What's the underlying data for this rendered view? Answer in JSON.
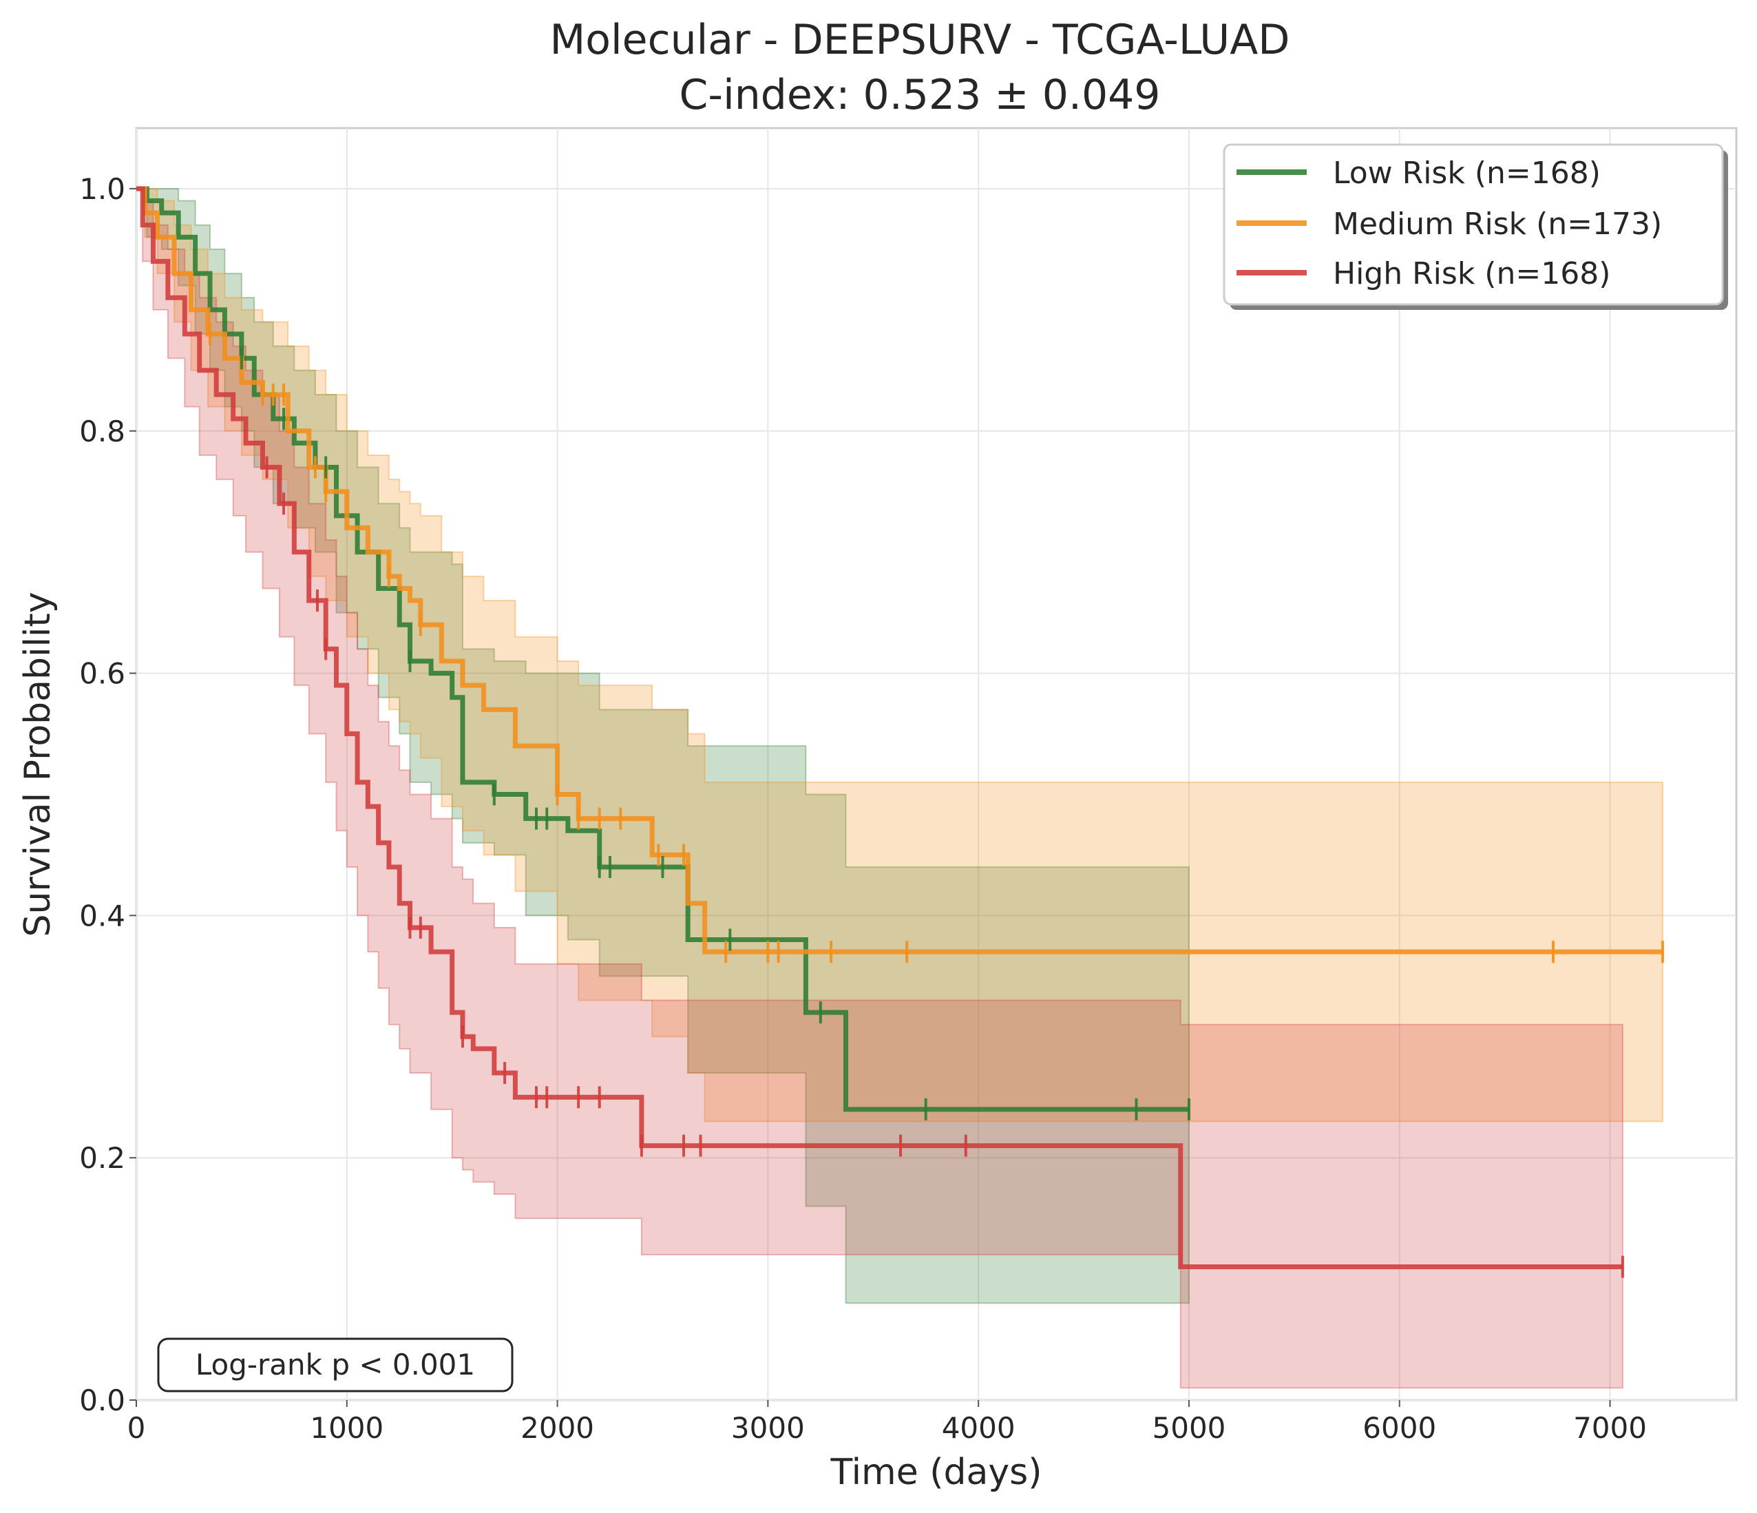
{
  "chart_data": {
    "type": "line",
    "title": "Molecular - DEEPSURV - TCGA-LUAD",
    "subtitle": "C-index: 0.523 ± 0.049",
    "xlabel": "Time (days)",
    "ylabel": "Survival Probability",
    "xlim": [
      0,
      7600
    ],
    "ylim": [
      0,
      1.05
    ],
    "xticks": [
      0,
      1000,
      2000,
      3000,
      4000,
      5000,
      6000,
      7000
    ],
    "yticks": [
      0.0,
      0.2,
      0.4,
      0.6,
      0.8,
      1.0
    ],
    "xtick_labels": [
      "0",
      "1000",
      "2000",
      "3000",
      "4000",
      "5000",
      "6000",
      "7000"
    ],
    "ytick_labels": [
      "0.0",
      "0.2",
      "0.4",
      "0.6",
      "0.8",
      "1.0"
    ],
    "grid": true,
    "legend_position": "top-right",
    "annotation": "Log-rank p < 0.001",
    "series": [
      {
        "name": "Low Risk (n=168)",
        "color": "#2e7d32",
        "x": [
          0,
          50,
          120,
          200,
          280,
          350,
          420,
          500,
          560,
          650,
          750,
          850,
          950,
          1050,
          1150,
          1250,
          1300,
          1400,
          1500,
          1550,
          1700,
          1850,
          2050,
          2200,
          2400,
          2620,
          2750,
          3000,
          3180,
          3250,
          3370,
          4000,
          4750,
          5000
        ],
        "y": [
          1.0,
          0.99,
          0.98,
          0.96,
          0.93,
          0.9,
          0.88,
          0.86,
          0.83,
          0.81,
          0.79,
          0.77,
          0.73,
          0.7,
          0.67,
          0.64,
          0.61,
          0.6,
          0.58,
          0.51,
          0.5,
          0.48,
          0.47,
          0.44,
          0.44,
          0.38,
          0.38,
          0.38,
          0.32,
          0.32,
          0.24,
          0.24,
          0.24,
          0.24
        ],
        "ci_lower": [
          1.0,
          0.96,
          0.95,
          0.92,
          0.88,
          0.85,
          0.82,
          0.8,
          0.77,
          0.74,
          0.72,
          0.7,
          0.65,
          0.62,
          0.58,
          0.55,
          0.51,
          0.5,
          0.48,
          0.46,
          0.45,
          0.4,
          0.38,
          0.35,
          0.35,
          0.27,
          0.27,
          0.27,
          0.16,
          0.16,
          0.08,
          0.08,
          0.08,
          0.08
        ],
        "ci_upper": [
          1.0,
          1.0,
          1.0,
          0.99,
          0.97,
          0.95,
          0.93,
          0.91,
          0.89,
          0.87,
          0.85,
          0.83,
          0.8,
          0.77,
          0.74,
          0.72,
          0.7,
          0.7,
          0.69,
          0.62,
          0.61,
          0.6,
          0.6,
          0.57,
          0.57,
          0.54,
          0.54,
          0.54,
          0.5,
          0.5,
          0.44,
          0.44,
          0.44,
          0.44
        ],
        "censor_x": [
          500,
          700,
          900,
          1300,
          1700,
          1900,
          1950,
          2200,
          2250,
          2500,
          2820,
          3250,
          3750,
          4750,
          5000
        ]
      },
      {
        "name": "Medium Risk (n=173)",
        "color": "#f28e1c",
        "x": [
          0,
          40,
          100,
          180,
          260,
          340,
          420,
          500,
          600,
          720,
          820,
          900,
          1000,
          1100,
          1200,
          1250,
          1300,
          1350,
          1450,
          1550,
          1650,
          1800,
          2000,
          2100,
          2300,
          2450,
          2550,
          2620,
          2700,
          3300,
          3660,
          6730,
          7250
        ],
        "y": [
          1.0,
          0.98,
          0.96,
          0.93,
          0.9,
          0.88,
          0.86,
          0.84,
          0.83,
          0.8,
          0.77,
          0.75,
          0.72,
          0.7,
          0.68,
          0.67,
          0.66,
          0.64,
          0.61,
          0.59,
          0.57,
          0.54,
          0.5,
          0.48,
          0.48,
          0.45,
          0.45,
          0.41,
          0.37,
          0.37,
          0.37,
          0.37,
          0.37
        ],
        "ci_lower": [
          1.0,
          0.96,
          0.93,
          0.89,
          0.85,
          0.82,
          0.8,
          0.78,
          0.76,
          0.72,
          0.68,
          0.66,
          0.63,
          0.6,
          0.57,
          0.56,
          0.55,
          0.53,
          0.49,
          0.47,
          0.45,
          0.42,
          0.36,
          0.33,
          0.33,
          0.3,
          0.3,
          0.27,
          0.23,
          0.23,
          0.23,
          0.23,
          0.23
        ],
        "ci_upper": [
          1.0,
          1.0,
          0.99,
          0.97,
          0.95,
          0.93,
          0.91,
          0.9,
          0.89,
          0.87,
          0.85,
          0.83,
          0.8,
          0.78,
          0.76,
          0.75,
          0.74,
          0.73,
          0.7,
          0.68,
          0.66,
          0.63,
          0.61,
          0.59,
          0.59,
          0.57,
          0.57,
          0.55,
          0.51,
          0.51,
          0.51,
          0.51,
          0.51
        ],
        "censor_x": [
          350,
          600,
          650,
          700,
          850,
          900,
          1200,
          1350,
          2000,
          2100,
          2200,
          2300,
          2480,
          2600,
          2800,
          3000,
          3050,
          3300,
          3660,
          6730,
          7250
        ]
      },
      {
        "name": "High Risk (n=168)",
        "color": "#d03b3b",
        "x": [
          0,
          30,
          80,
          150,
          230,
          300,
          380,
          460,
          520,
          600,
          680,
          750,
          820,
          900,
          950,
          1000,
          1050,
          1100,
          1150,
          1200,
          1250,
          1300,
          1400,
          1500,
          1550,
          1600,
          1700,
          1800,
          2000,
          2200,
          2400,
          2600,
          2700,
          3630,
          3940,
          4960,
          7060
        ],
        "y": [
          1.0,
          0.97,
          0.94,
          0.91,
          0.88,
          0.85,
          0.83,
          0.81,
          0.79,
          0.77,
          0.74,
          0.7,
          0.66,
          0.62,
          0.59,
          0.55,
          0.51,
          0.49,
          0.46,
          0.44,
          0.41,
          0.39,
          0.37,
          0.32,
          0.3,
          0.29,
          0.27,
          0.25,
          0.25,
          0.25,
          0.21,
          0.21,
          0.21,
          0.21,
          0.21,
          0.11,
          0.11
        ],
        "ci_lower": [
          1.0,
          0.94,
          0.9,
          0.86,
          0.82,
          0.78,
          0.76,
          0.73,
          0.7,
          0.67,
          0.63,
          0.59,
          0.55,
          0.51,
          0.47,
          0.44,
          0.4,
          0.37,
          0.34,
          0.31,
          0.29,
          0.27,
          0.24,
          0.2,
          0.19,
          0.18,
          0.17,
          0.15,
          0.15,
          0.15,
          0.12,
          0.12,
          0.12,
          0.12,
          0.12,
          0.01,
          0.01
        ],
        "ci_upper": [
          1.0,
          0.99,
          0.97,
          0.95,
          0.93,
          0.91,
          0.89,
          0.87,
          0.85,
          0.83,
          0.8,
          0.77,
          0.74,
          0.71,
          0.68,
          0.65,
          0.62,
          0.59,
          0.56,
          0.54,
          0.52,
          0.5,
          0.48,
          0.44,
          0.43,
          0.41,
          0.39,
          0.36,
          0.36,
          0.36,
          0.33,
          0.33,
          0.33,
          0.33,
          0.33,
          0.31,
          0.31
        ],
        "censor_x": [
          620,
          700,
          860,
          900,
          1300,
          1350,
          1550,
          1750,
          1900,
          1950,
          2100,
          2200,
          2400,
          2600,
          2680,
          3630,
          3940,
          7060
        ]
      }
    ]
  }
}
